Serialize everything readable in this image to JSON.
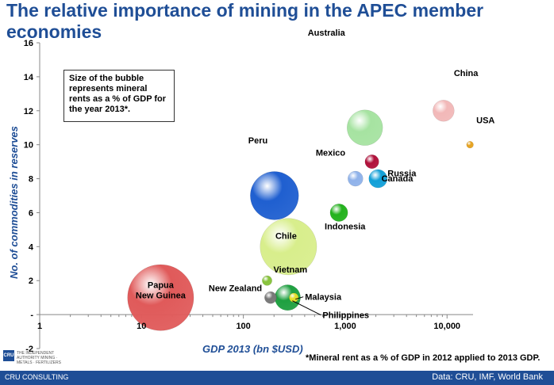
{
  "title": "The relative importance of mining in the APEC member economies",
  "note": "Size of the bubble represents mineral rents as a % of GDP for the year 2013*.",
  "footnote": "*Mineral rent as a % of GDP in 2012 applied to 2013 GDP.",
  "footer": {
    "left": "CRU CONSULTING",
    "right": "Data: CRU, IMF, World Bank"
  },
  "logo": {
    "mark": "CRU",
    "text": "THE INDEPENDENT AUTHORITY MINING · METALS · FERTILIZERS"
  },
  "chart_data": {
    "type": "scatter",
    "xscale": "log",
    "xlabel": "GDP 2013 (bn $USD)",
    "ylabel": "No. of commodities in reserves",
    "xlim": [
      1,
      18000
    ],
    "ylim": [
      -2,
      16
    ],
    "xticks": [
      {
        "value": 1,
        "label": "1"
      },
      {
        "value": 10,
        "label": "10"
      },
      {
        "value": 100,
        "label": "100"
      },
      {
        "value": 1000,
        "label": "1,000"
      },
      {
        "value": 10000,
        "label": "10,000"
      }
    ],
    "yticks": [
      {
        "value": -2,
        "label": "-2"
      },
      {
        "value": 0,
        "label": "-"
      },
      {
        "value": 2,
        "label": "2"
      },
      {
        "value": 4,
        "label": "4"
      },
      {
        "value": 6,
        "label": "6"
      },
      {
        "value": 8,
        "label": "8"
      },
      {
        "value": 10,
        "label": "10"
      },
      {
        "value": 12,
        "label": "12"
      },
      {
        "value": 14,
        "label": "14"
      },
      {
        "value": 16,
        "label": "16"
      }
    ],
    "points": [
      {
        "name": "Papua New Guinea",
        "x": 15.4,
        "y": 1,
        "size": 36.5,
        "color": "#e05a5a"
      },
      {
        "name": "Peru",
        "x": 202,
        "y": 7,
        "size": 19.5,
        "color": "#1f5fd0"
      },
      {
        "name": "Chile",
        "x": 277,
        "y": 4,
        "size": 26.7,
        "color": "#d8ee8c"
      },
      {
        "name": "Australia",
        "x": 1560,
        "y": 11,
        "size": 10.6,
        "color": "#a6e3a1"
      },
      {
        "name": "China",
        "x": 9240,
        "y": 12,
        "size": 3.8,
        "color": "#f2b8b8"
      },
      {
        "name": "USA",
        "x": 16800,
        "y": 10,
        "size": 0.4,
        "color": "#e6a21f"
      },
      {
        "name": "Canada",
        "x": 1830,
        "y": 9,
        "size": 1.6,
        "color": "#b0103a"
      },
      {
        "name": "Mexico",
        "x": 1260,
        "y": 8,
        "size": 1.9,
        "color": "#8fb2ea"
      },
      {
        "name": "Russia",
        "x": 2100,
        "y": 8,
        "size": 2.8,
        "color": "#12a0d8"
      },
      {
        "name": "Indonesia",
        "x": 868,
        "y": 6,
        "size": 2.6,
        "color": "#23b21d"
      },
      {
        "name": "Vietnam",
        "x": 171,
        "y": 2,
        "size": 0.8,
        "color": "#86c23a"
      },
      {
        "name": "Malaysia",
        "x": 313,
        "y": 1,
        "size": 0.7,
        "color": "#e6df2a"
      },
      {
        "name": "Philippines",
        "x": 272,
        "y": 1,
        "size": 5.5,
        "color": "#1ea040"
      },
      {
        "name": "New Zealand",
        "x": 185,
        "y": 1,
        "size": 1.2,
        "color": "#777777"
      }
    ]
  }
}
